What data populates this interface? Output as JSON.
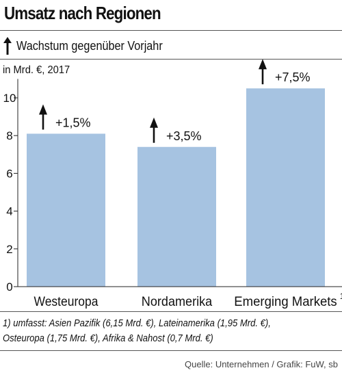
{
  "header": {
    "title": "Umsatz nach Regionen",
    "legend_label": "Wachstum gegenüber Vorjahr",
    "unit_label": "in Mrd. €, 2017"
  },
  "colors": {
    "bar": "#a6c3e1",
    "axis": "#222222",
    "text": "#111111"
  },
  "chart_data": {
    "type": "bar",
    "title": "Umsatz nach Regionen",
    "ylabel": "in Mrd. €, 2017",
    "categories": [
      "Westeuropa",
      "Nordamerika",
      "Emerging Markets"
    ],
    "category_superscripts": [
      "",
      "",
      "1"
    ],
    "values": [
      8.1,
      7.4,
      10.5
    ],
    "growth_labels": [
      "+1,5%",
      "+3,5%",
      "+7,5%"
    ],
    "growth_direction": [
      "up",
      "up",
      "up"
    ],
    "ylim": [
      0,
      11
    ],
    "yticks": [
      0,
      2,
      4,
      6,
      8,
      10
    ],
    "grid": false,
    "legend": "top-left"
  },
  "footnote": {
    "line1": "1) umfasst: Asien Pazifik (6,15 Mrd. €), Lateinamerika  (1,95 Mrd. €),",
    "line2": "Osteuropa  (1,75 Mrd. €), Afrika & Nahost  (0,7 Mrd. €)"
  },
  "source": "Quelle: Unternehmen / Grafik: FuW, sb"
}
